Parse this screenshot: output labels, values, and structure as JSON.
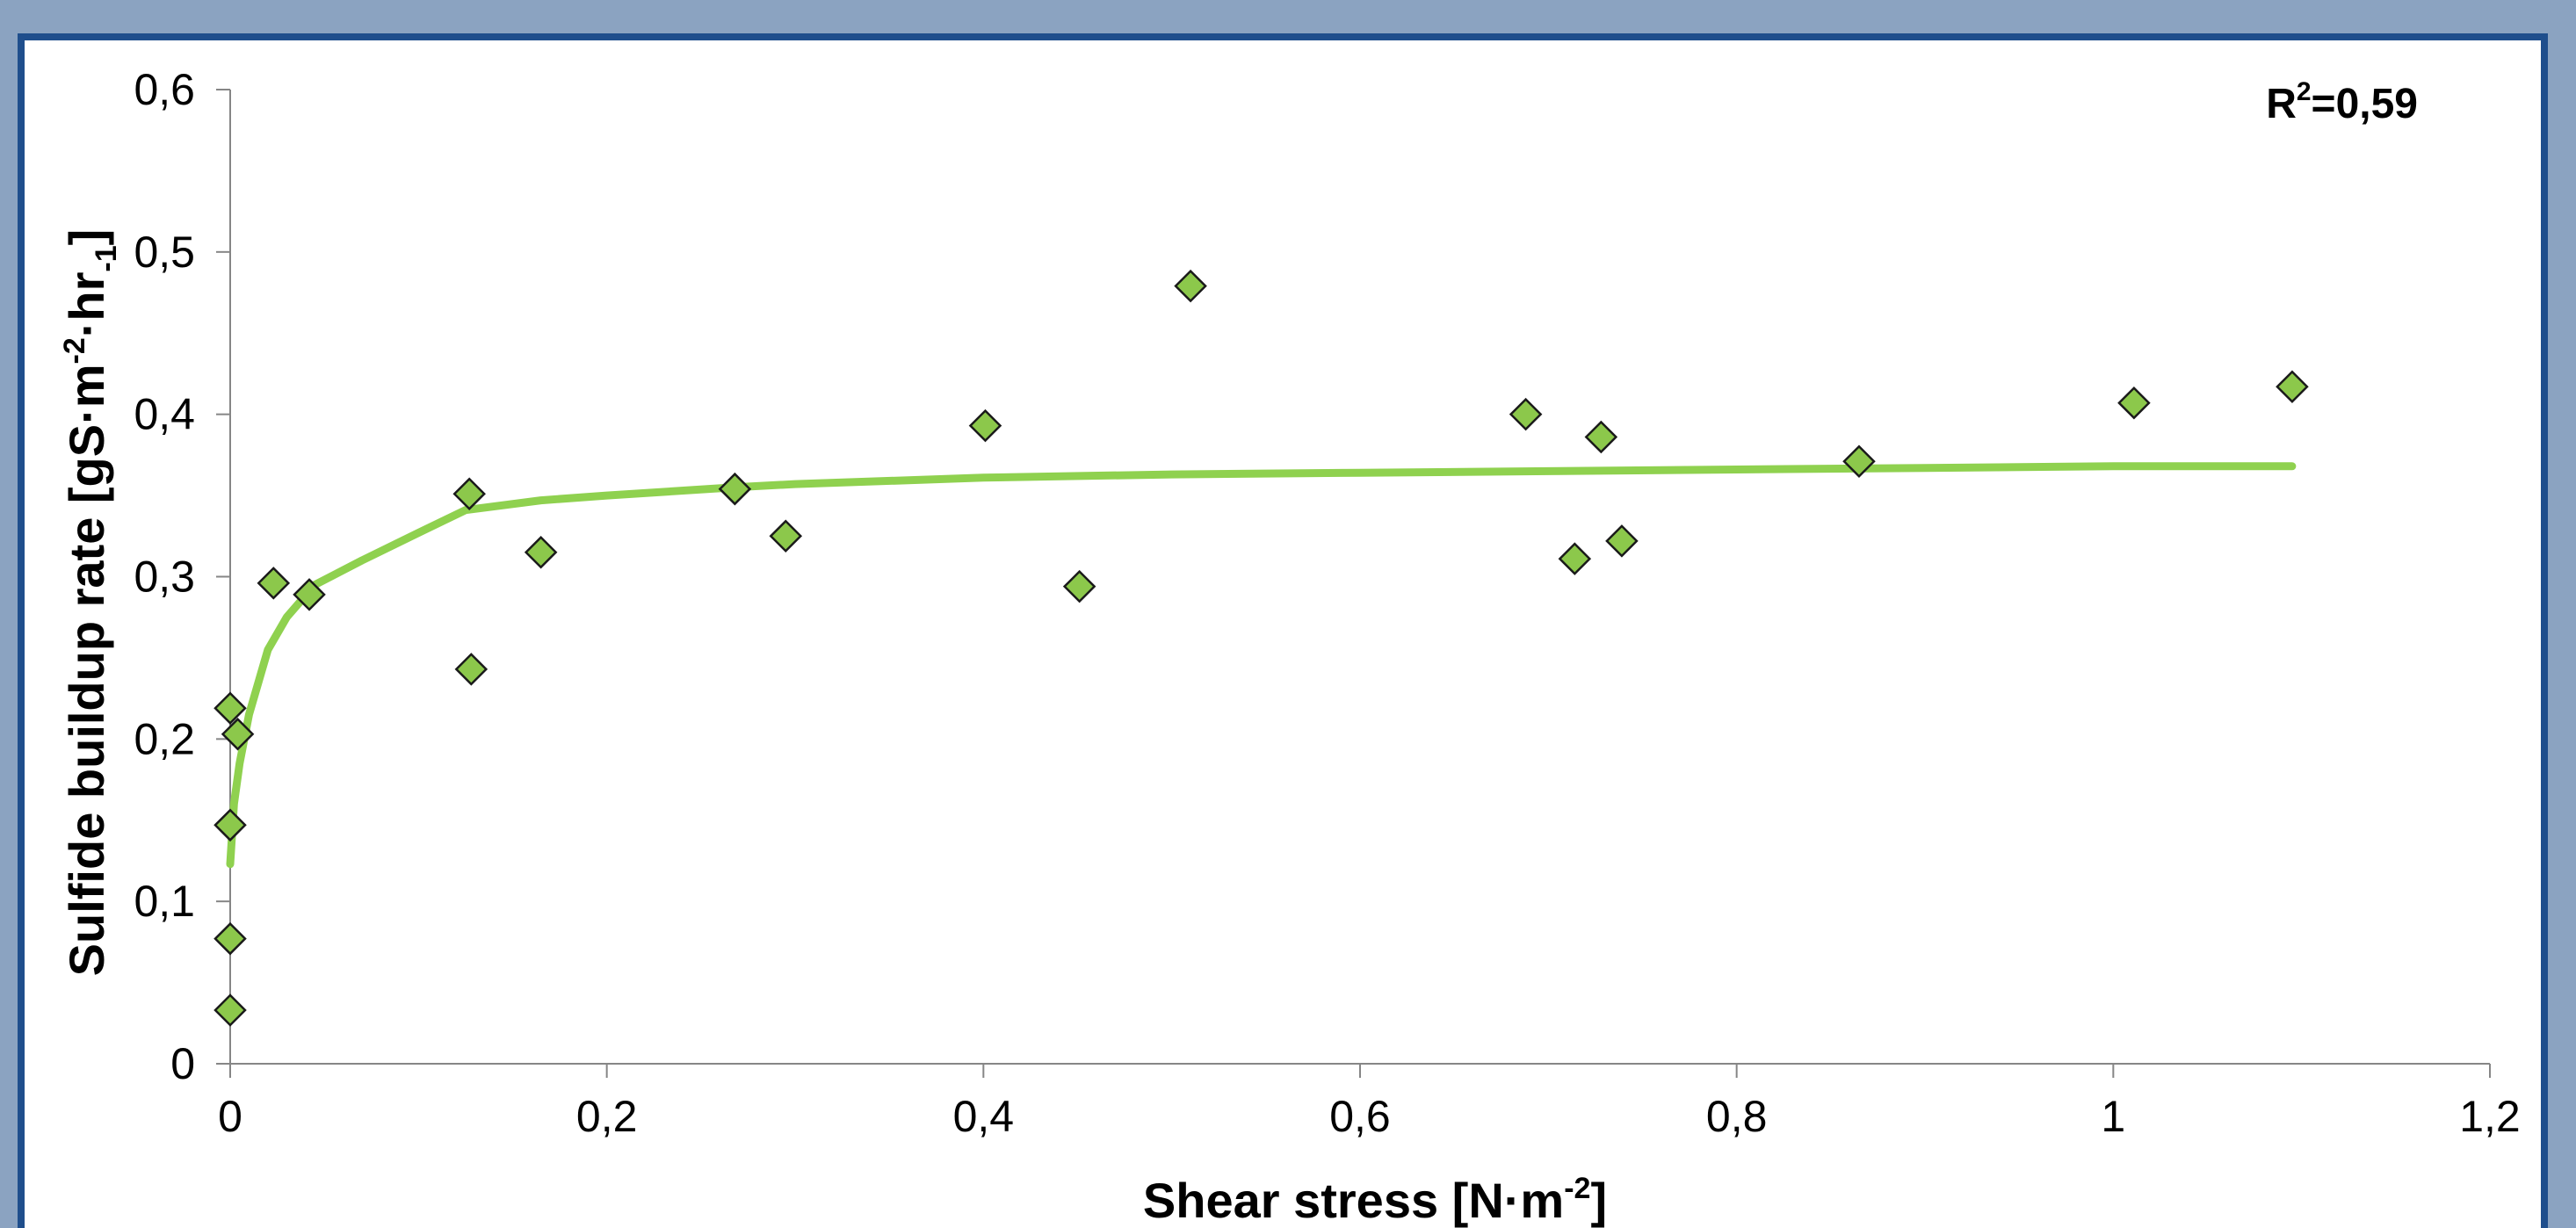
{
  "chart_data": {
    "type": "scatter",
    "xlabel": "Shear stress [N·m",
    "xlabel_sup": "-2",
    "xlabel_end": "]",
    "ylabel": "Sulfide buildup rate [gS·m",
    "ylabel_sup": "-2",
    "ylabel_mid": "·hr",
    "ylabel_sub": "-1",
    "ylabel_end": "]",
    "annotation": {
      "prefix": "R",
      "sup": "2",
      "value": "=0,59"
    },
    "xlim": [
      0,
      1.2
    ],
    "ylim": [
      0,
      0.6
    ],
    "xticks": [
      {
        "v": 0,
        "label": "0"
      },
      {
        "v": 0.2,
        "label": "0,2"
      },
      {
        "v": 0.4,
        "label": "0,4"
      },
      {
        "v": 0.6,
        "label": "0,6"
      },
      {
        "v": 0.8,
        "label": "0,8"
      },
      {
        "v": 1.0,
        "label": "1"
      },
      {
        "v": 1.2,
        "label": "1,2"
      }
    ],
    "yticks": [
      {
        "v": 0,
        "label": "0"
      },
      {
        "v": 0.1,
        "label": "0,1"
      },
      {
        "v": 0.2,
        "label": "0,2"
      },
      {
        "v": 0.3,
        "label": "0,3"
      },
      {
        "v": 0.4,
        "label": "0,4"
      },
      {
        "v": 0.5,
        "label": "0,5"
      },
      {
        "v": 0.6,
        "label": "0,6"
      }
    ],
    "grid": false,
    "legend": "none",
    "colors": {
      "marker": "#8cc84b",
      "marker_edge": "#1a1a1a",
      "fit": "#8fd14f",
      "axis": "#868686"
    },
    "points": [
      {
        "x": 0.0,
        "y": 0.033
      },
      {
        "x": 0.0,
        "y": 0.077
      },
      {
        "x": 0.0,
        "y": 0.147
      },
      {
        "x": 0.0,
        "y": 0.219
      },
      {
        "x": 0.004,
        "y": 0.203
      },
      {
        "x": 0.023,
        "y": 0.296
      },
      {
        "x": 0.042,
        "y": 0.289
      },
      {
        "x": 0.127,
        "y": 0.351
      },
      {
        "x": 0.128,
        "y": 0.243
      },
      {
        "x": 0.165,
        "y": 0.315
      },
      {
        "x": 0.268,
        "y": 0.354
      },
      {
        "x": 0.295,
        "y": 0.325
      },
      {
        "x": 0.401,
        "y": 0.393
      },
      {
        "x": 0.451,
        "y": 0.294
      },
      {
        "x": 0.51,
        "y": 0.479
      },
      {
        "x": 0.688,
        "y": 0.4
      },
      {
        "x": 0.714,
        "y": 0.311
      },
      {
        "x": 0.728,
        "y": 0.386
      },
      {
        "x": 0.739,
        "y": 0.322
      },
      {
        "x": 0.865,
        "y": 0.371
      },
      {
        "x": 1.011,
        "y": 0.407
      },
      {
        "x": 1.095,
        "y": 0.417
      }
    ],
    "fit_line": {
      "x": [
        0.0,
        0.002,
        0.005,
        0.01,
        0.02,
        0.03,
        0.045,
        0.07,
        0.1,
        0.125,
        0.165,
        0.2,
        0.268,
        0.3,
        0.4,
        0.5,
        0.6,
        0.7,
        0.8,
        0.9,
        1.0,
        1.095
      ],
      "y": [
        0.123,
        0.16,
        0.185,
        0.215,
        0.255,
        0.275,
        0.295,
        0.31,
        0.327,
        0.341,
        0.347,
        0.35,
        0.355,
        0.357,
        0.361,
        0.363,
        0.364,
        0.365,
        0.366,
        0.367,
        0.368,
        0.368
      ]
    }
  }
}
